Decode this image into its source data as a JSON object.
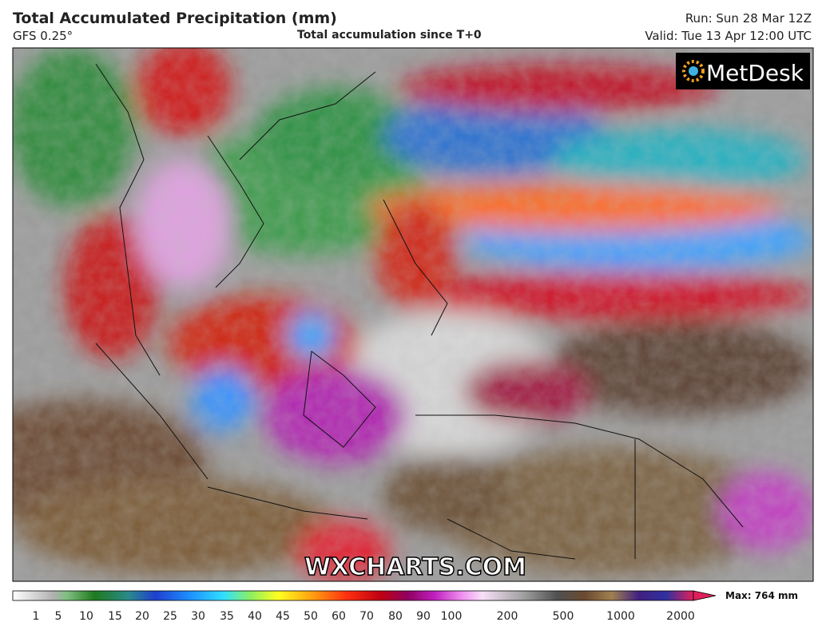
{
  "header": {
    "title": "Total Accumulated Precipitation (mm)",
    "model": "GFS 0.25°",
    "subtitle": "Total accumulation since T+0",
    "run": "Run: Sun 28 Mar 12Z",
    "valid": "Valid: Tue 13 Apr 12:00 UTC"
  },
  "map": {
    "logo": "MetDesk",
    "watermark": "WXCHARTS.COM"
  },
  "colorbar": {
    "labels": [
      1,
      5,
      10,
      15,
      20,
      25,
      30,
      35,
      40,
      45,
      50,
      60,
      70,
      80,
      90,
      100,
      200,
      500,
      1000,
      2000
    ],
    "max": "Max: 764 mm"
  }
}
